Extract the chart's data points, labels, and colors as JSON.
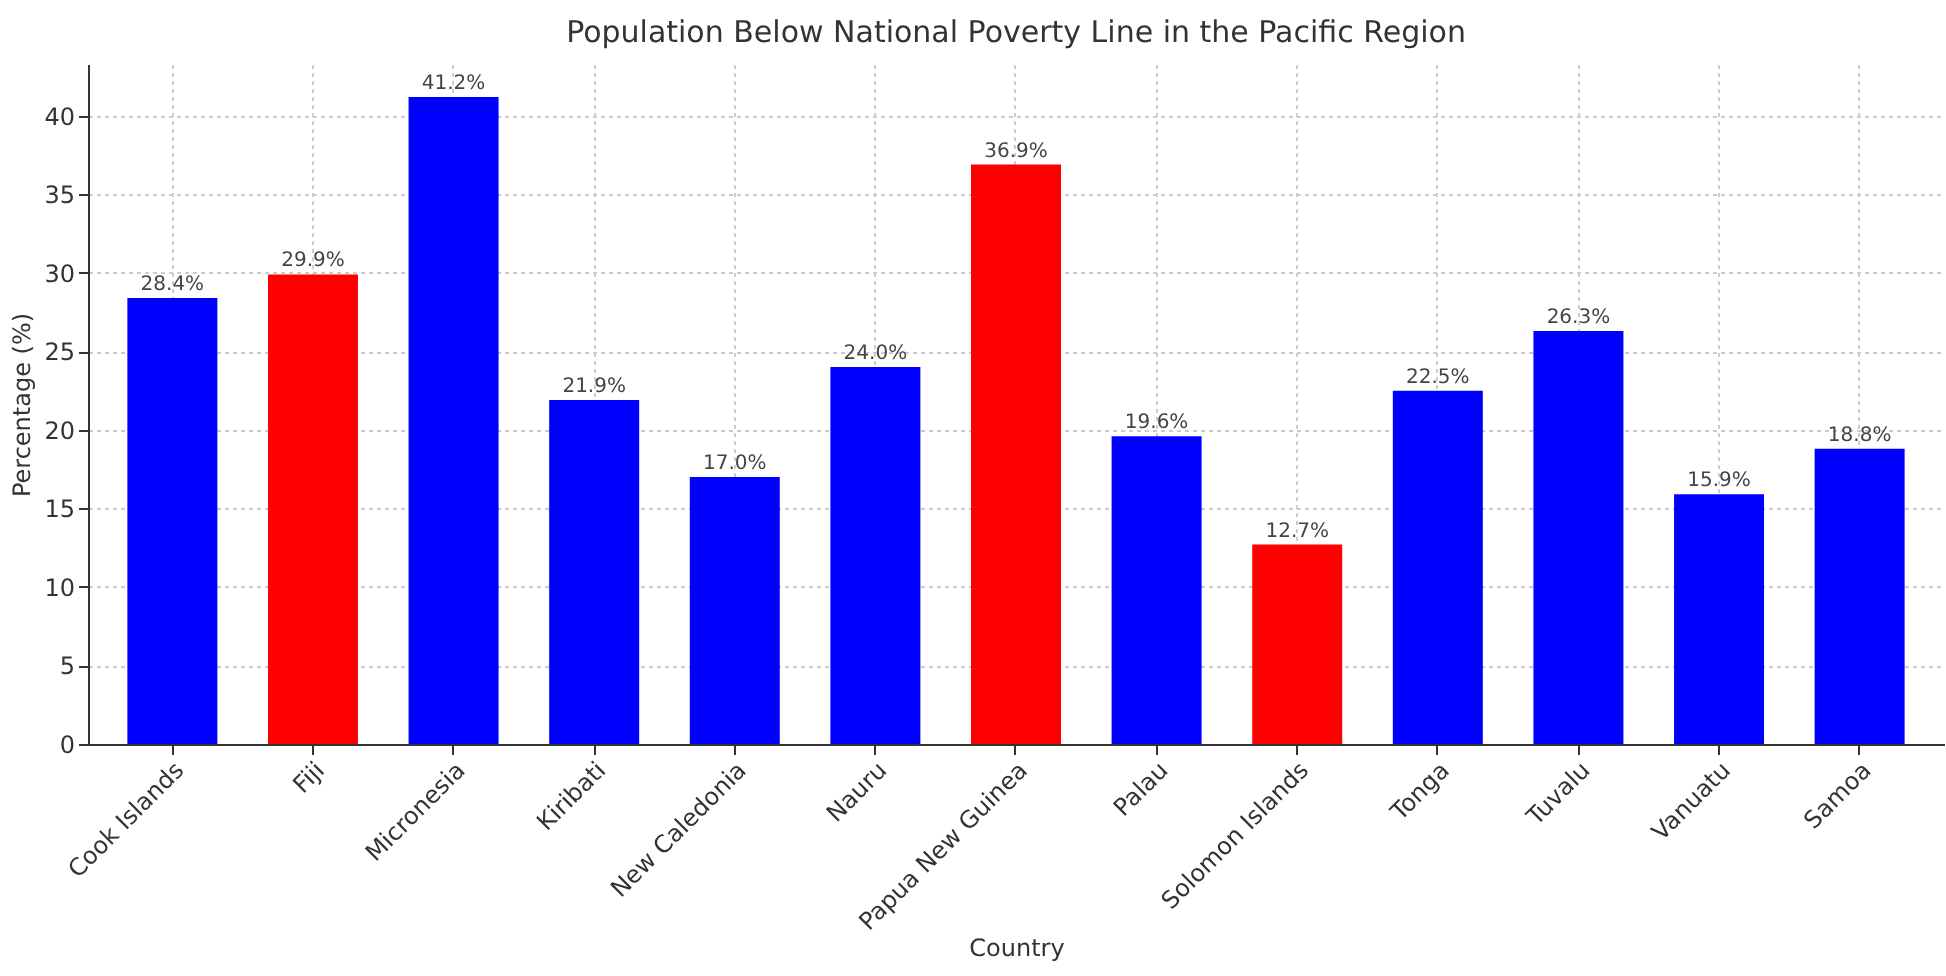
{
  "chart_data": {
    "type": "bar",
    "title": "Population Below National Poverty Line in the Pacific Region",
    "xlabel": "Country",
    "ylabel": "Percentage (%)",
    "categories": [
      "Cook Islands",
      "Fiji",
      "Micronesia",
      "Kiribati",
      "New Caledonia",
      "Nauru",
      "Papua New Guinea",
      "Palau",
      "Solomon Islands",
      "Tonga",
      "Tuvalu",
      "Vanuatu",
      "Samoa"
    ],
    "values": [
      28.4,
      29.9,
      41.2,
      21.9,
      17.0,
      24.0,
      36.9,
      19.6,
      12.7,
      22.5,
      26.3,
      15.9,
      18.8
    ],
    "colors": [
      "#0000ff",
      "#ff0000",
      "#0000ff",
      "#0000ff",
      "#0000ff",
      "#0000ff",
      "#ff0000",
      "#0000ff",
      "#ff0000",
      "#0000ff",
      "#0000ff",
      "#0000ff",
      "#0000ff"
    ],
    "value_labels": [
      "28.4%",
      "29.9%",
      "41.2%",
      "21.9%",
      "17.0%",
      "24.0%",
      "36.9%",
      "19.6%",
      "12.7%",
      "22.5%",
      "26.3%",
      "15.9%",
      "18.8%"
    ],
    "ylim": [
      0,
      43.3
    ],
    "yticks": [
      0,
      5,
      10,
      15,
      20,
      25,
      30,
      35,
      40
    ],
    "grid": true
  }
}
